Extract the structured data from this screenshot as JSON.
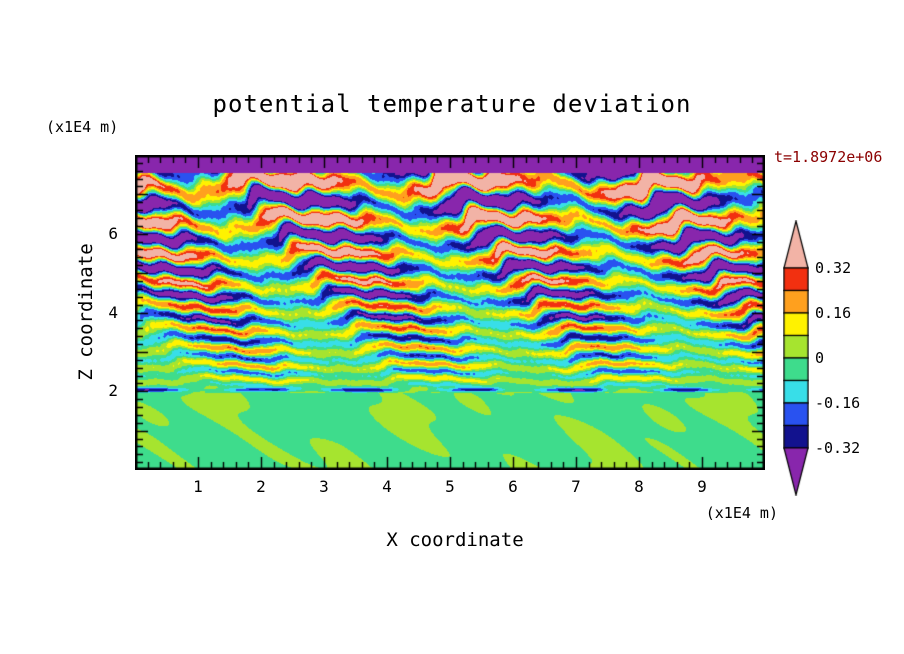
{
  "figure": {
    "background": "#ffffff",
    "frame_color": "#000000",
    "text_color": "#000000",
    "time_label_color": "#8b0000"
  },
  "chart_data": {
    "type": "heatmap",
    "title": "potential temperature deviation",
    "xlabel": "X coordinate",
    "ylabel": "Z coordinate",
    "x_unit_label": "(x1E4 m)",
    "y_unit_label": "(x1E4 m)",
    "time_annotation": "t=1.8972e+06",
    "xlim": [
      0,
      10
    ],
    "ylim": [
      0,
      8
    ],
    "x_major_ticks": [
      "1",
      "2",
      "3",
      "4",
      "5",
      "6",
      "7",
      "8",
      "9"
    ],
    "x_major_tick_values": [
      1,
      2,
      3,
      4,
      5,
      6,
      7,
      8,
      9
    ],
    "y_major_ticks": [
      "2",
      "4",
      "6"
    ],
    "y_major_tick_values": [
      2,
      4,
      6
    ],
    "minor_tick_step": 0.2,
    "grid": false,
    "legend_position": "right-colorbar",
    "contour_levels": [
      -0.32,
      -0.24,
      -0.16,
      -0.08,
      0,
      0.08,
      0.16,
      0.24,
      0.32
    ],
    "band_colors_low_to_high": [
      "#8826ac",
      "#12128e",
      "#2952f0",
      "#38dee8",
      "#3edc8c",
      "#a6e42f",
      "#fff200",
      "#ffa01e",
      "#f23010",
      "#f2b3a6"
    ],
    "colorbar_labels": [
      "0.32",
      "0.16",
      "0",
      "-0.16",
      "-0.32"
    ]
  }
}
